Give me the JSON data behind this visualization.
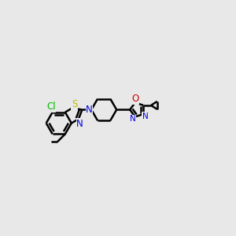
{
  "background_color": "#e8e8e8",
  "figsize": [
    3.0,
    3.0
  ],
  "dpi": 100,
  "xlim": [
    0.0,
    9.0
  ],
  "ylim": [
    0.5,
    7.5
  ],
  "bond_lw": 1.8,
  "colors": {
    "black": "#000000",
    "blue": "#0000dd",
    "green": "#00bb00",
    "yellow": "#bbbb00",
    "red": "#cc0000"
  }
}
